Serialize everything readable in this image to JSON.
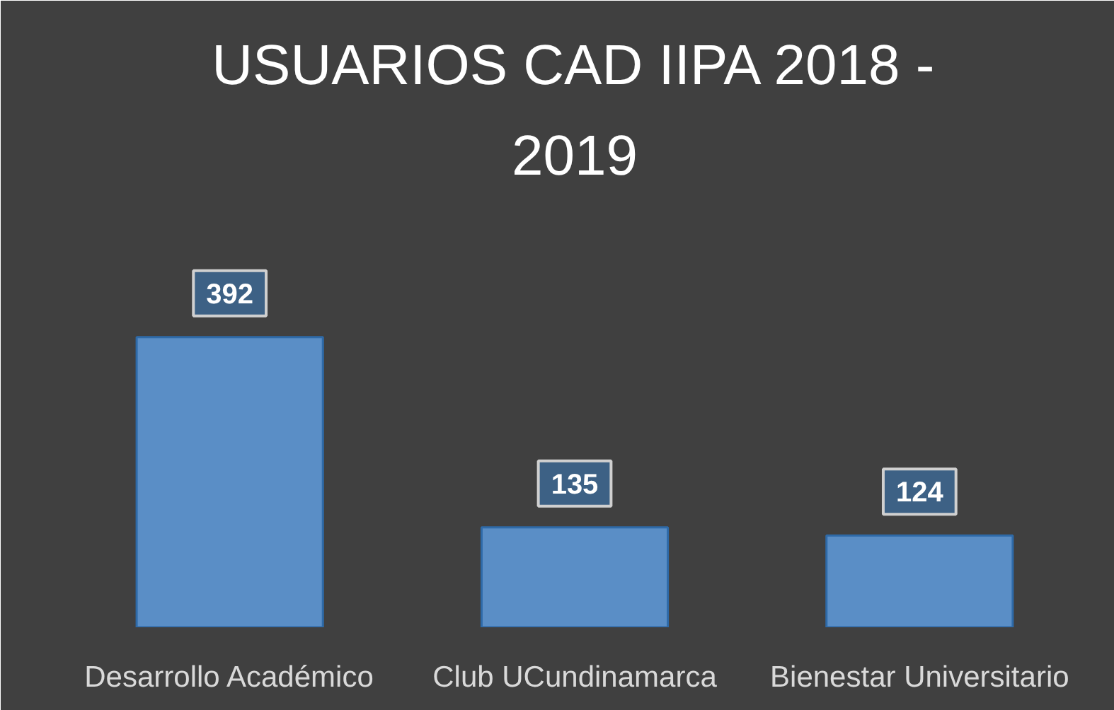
{
  "chart_data": {
    "type": "bar",
    "title": "USUARIOS CAD IIPA 2018 - 2019",
    "categories": [
      "Desarrollo Académico",
      "Club UCundinamarca",
      "Bienestar Universitario"
    ],
    "values": [
      392,
      135,
      124
    ],
    "color": "#5a8ec6",
    "data_labels": true
  }
}
